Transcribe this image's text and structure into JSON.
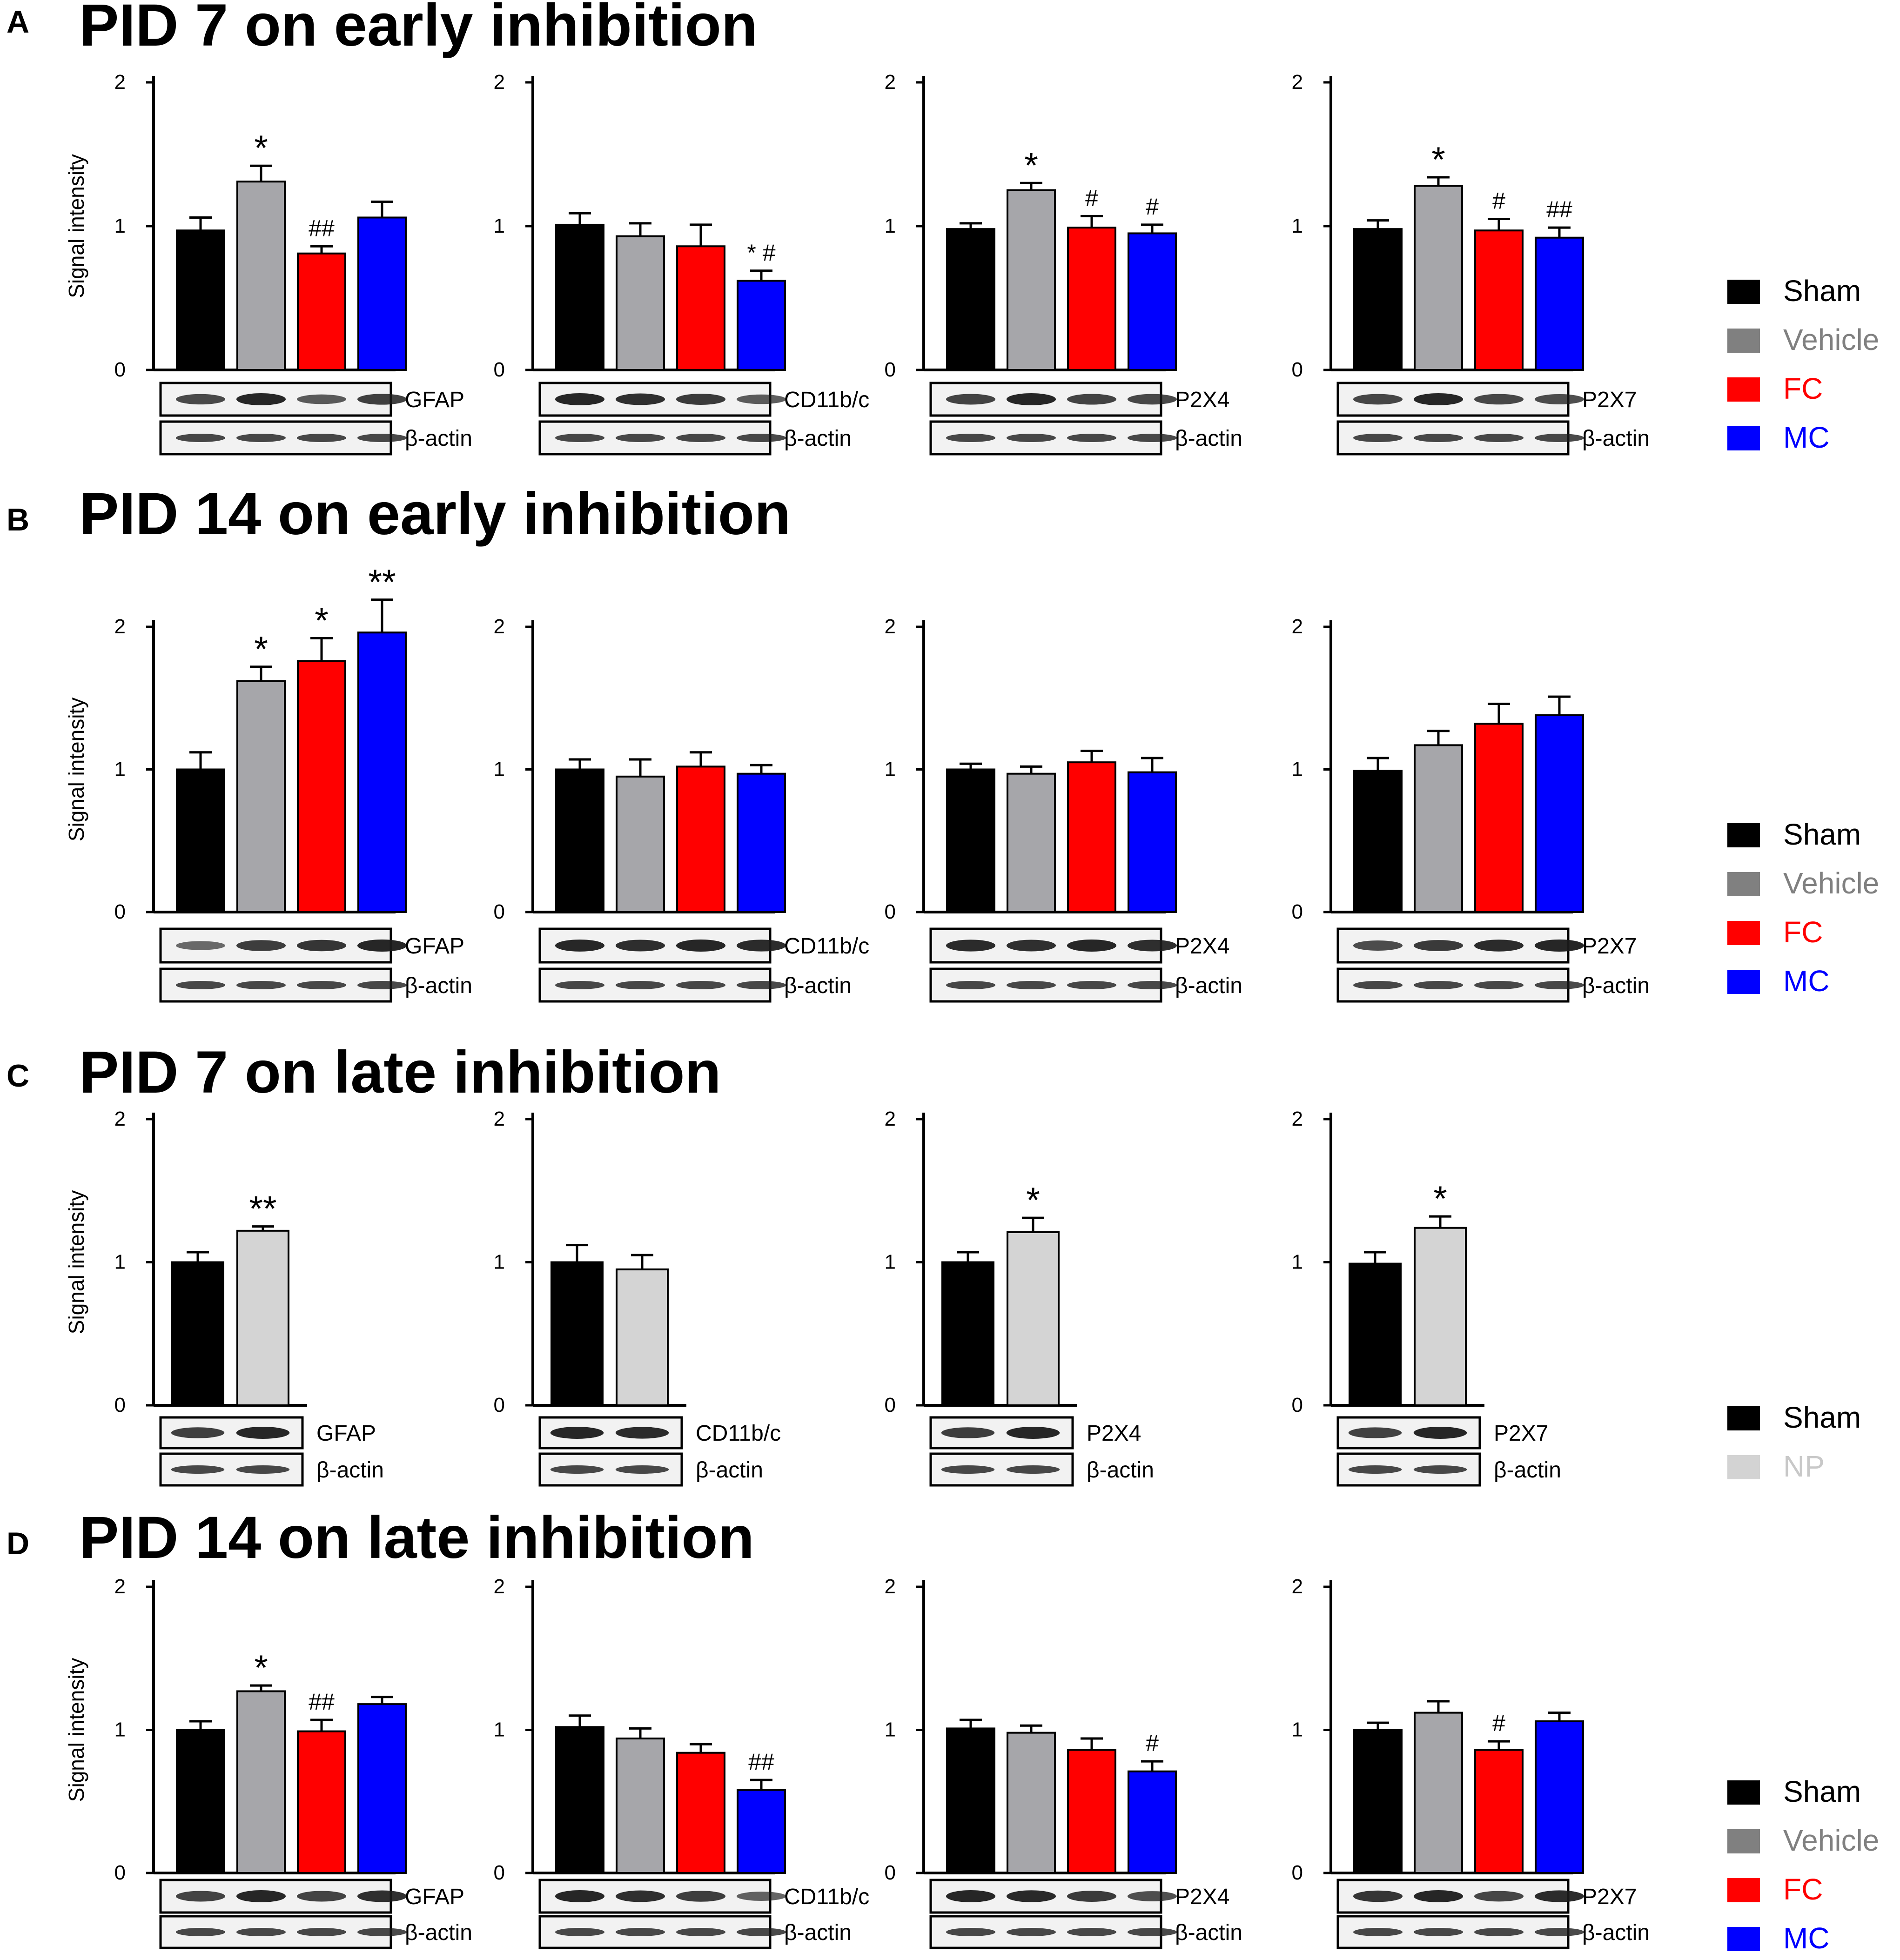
{
  "figure": {
    "ylabel": "Signal intensity",
    "y_ticks": [
      "0",
      "1",
      "2"
    ],
    "legend_early": [
      {
        "label": "Sham",
        "color": "#000000"
      },
      {
        "label": "Vehicle",
        "color": "#808080"
      },
      {
        "label": "FC",
        "color": "#ff0000"
      },
      {
        "label": "MC",
        "color": "#0000ff"
      }
    ],
    "legend_late": [
      {
        "label": "Sham",
        "color": "#000000"
      },
      {
        "label": "NP",
        "color": "#d3d3d3"
      }
    ],
    "bar_colors": {
      "Sham": "#000000",
      "Vehicle": "#a6a6aa",
      "FC": "#ff0000",
      "MC": "#0000ff",
      "NP": "#d4d4d4"
    },
    "legend_text_colors": {
      "Sham": "#000000",
      "Vehicle": "#808080",
      "FC": "#ff0000",
      "MC": "#0000ff",
      "NP": "#c8c8c8"
    }
  },
  "chart_data": [
    {
      "type": "bar",
      "panel": "A",
      "title": "PID 7 on early inhibition",
      "protein": "GFAP",
      "loading": "β-actin",
      "ylabel": "Signal intensity",
      "ylim": [
        0,
        2
      ],
      "categories": [
        "Sham",
        "Vehicle",
        "FC",
        "MC"
      ],
      "values": [
        0.97,
        1.31,
        0.81,
        1.06
      ],
      "errors": [
        0.09,
        0.11,
        0.05,
        0.11
      ],
      "annotations": [
        "",
        "*",
        "##",
        ""
      ]
    },
    {
      "type": "bar",
      "panel": "A",
      "title": "PID 7 on early inhibition",
      "protein": "CD11b/c",
      "loading": "β-actin",
      "ylabel": "",
      "ylim": [
        0,
        2
      ],
      "categories": [
        "Sham",
        "Vehicle",
        "FC",
        "MC"
      ],
      "values": [
        1.01,
        0.93,
        0.86,
        0.62
      ],
      "errors": [
        0.08,
        0.09,
        0.15,
        0.07
      ],
      "annotations": [
        "",
        "",
        "",
        "* #"
      ]
    },
    {
      "type": "bar",
      "panel": "A",
      "title": "PID 7 on early inhibition",
      "protein": "P2X4",
      "loading": "β-actin",
      "ylabel": "",
      "ylim": [
        0,
        2
      ],
      "categories": [
        "Sham",
        "Vehicle",
        "FC",
        "MC"
      ],
      "values": [
        0.98,
        1.25,
        0.99,
        0.95
      ],
      "errors": [
        0.04,
        0.05,
        0.08,
        0.06
      ],
      "annotations": [
        "",
        "*",
        "#",
        "#"
      ]
    },
    {
      "type": "bar",
      "panel": "A",
      "title": "PID 7 on early inhibition",
      "protein": "P2X7",
      "loading": "β-actin",
      "ylabel": "",
      "ylim": [
        0,
        2
      ],
      "categories": [
        "Sham",
        "Vehicle",
        "FC",
        "MC"
      ],
      "values": [
        0.98,
        1.28,
        0.97,
        0.92
      ],
      "errors": [
        0.06,
        0.06,
        0.08,
        0.07
      ],
      "annotations": [
        "",
        "*",
        "#",
        "##"
      ]
    },
    {
      "type": "bar",
      "panel": "B",
      "title": "PID 14 on early inhibition",
      "protein": "GFAP",
      "loading": "β-actin",
      "ylabel": "Signal intensity",
      "ylim": [
        0,
        2
      ],
      "categories": [
        "Sham",
        "Vehicle",
        "FC",
        "MC"
      ],
      "values": [
        1.0,
        1.62,
        1.76,
        1.96
      ],
      "errors": [
        0.12,
        0.1,
        0.16,
        0.23
      ],
      "annotations": [
        "",
        "*",
        "*",
        "**"
      ]
    },
    {
      "type": "bar",
      "panel": "B",
      "title": "PID 14 on early inhibition",
      "protein": "CD11b/c",
      "loading": "β-actin",
      "ylabel": "",
      "ylim": [
        0,
        2
      ],
      "categories": [
        "Sham",
        "Vehicle",
        "FC",
        "MC"
      ],
      "values": [
        1.0,
        0.95,
        1.02,
        0.97
      ],
      "errors": [
        0.07,
        0.12,
        0.1,
        0.06
      ],
      "annotations": [
        "",
        "",
        "",
        ""
      ]
    },
    {
      "type": "bar",
      "panel": "B",
      "title": "PID 14 on early inhibition",
      "protein": "P2X4",
      "loading": "β-actin",
      "ylabel": "",
      "ylim": [
        0,
        2
      ],
      "categories": [
        "Sham",
        "Vehicle",
        "FC",
        "MC"
      ],
      "values": [
        1.0,
        0.97,
        1.05,
        0.98
      ],
      "errors": [
        0.04,
        0.05,
        0.08,
        0.1
      ],
      "annotations": [
        "",
        "",
        "",
        ""
      ]
    },
    {
      "type": "bar",
      "panel": "B",
      "title": "PID 14 on early inhibition",
      "protein": "P2X7",
      "loading": "β-actin",
      "ylabel": "",
      "ylim": [
        0,
        2
      ],
      "categories": [
        "Sham",
        "Vehicle",
        "FC",
        "MC"
      ],
      "values": [
        0.99,
        1.17,
        1.32,
        1.38
      ],
      "errors": [
        0.09,
        0.1,
        0.14,
        0.13
      ],
      "annotations": [
        "",
        "",
        "",
        ""
      ]
    },
    {
      "type": "bar",
      "panel": "C",
      "title": "PID 7 on late inhibition",
      "protein": "GFAP",
      "loading": "β-actin",
      "ylabel": "Signal intensity",
      "ylim": [
        0,
        2
      ],
      "categories": [
        "Sham",
        "NP"
      ],
      "values": [
        1.0,
        1.22
      ],
      "errors": [
        0.07,
        0.03
      ],
      "annotations": [
        "",
        "**"
      ]
    },
    {
      "type": "bar",
      "panel": "C",
      "title": "PID 7 on late inhibition",
      "protein": "CD11b/c",
      "loading": "β-actin",
      "ylabel": "",
      "ylim": [
        0,
        2
      ],
      "categories": [
        "Sham",
        "NP"
      ],
      "values": [
        1.0,
        0.95
      ],
      "errors": [
        0.12,
        0.1
      ],
      "annotations": [
        "",
        ""
      ]
    },
    {
      "type": "bar",
      "panel": "C",
      "title": "PID 7 on late inhibition",
      "protein": "P2X4",
      "loading": "β-actin",
      "ylabel": "",
      "ylim": [
        0,
        2
      ],
      "categories": [
        "Sham",
        "NP"
      ],
      "values": [
        1.0,
        1.21
      ],
      "errors": [
        0.07,
        0.1
      ],
      "annotations": [
        "",
        "*"
      ]
    },
    {
      "type": "bar",
      "panel": "C",
      "title": "PID 7 on late inhibition",
      "protein": "P2X7",
      "loading": "β-actin",
      "ylabel": "",
      "ylim": [
        0,
        2
      ],
      "categories": [
        "Sham",
        "NP"
      ],
      "values": [
        0.99,
        1.24
      ],
      "errors": [
        0.08,
        0.08
      ],
      "annotations": [
        "",
        "*"
      ]
    },
    {
      "type": "bar",
      "panel": "D",
      "title": "PID 14 on late inhibition",
      "protein": "GFAP",
      "loading": "β-actin",
      "ylabel": "Signal intensity",
      "ylim": [
        0,
        2
      ],
      "categories": [
        "Sham",
        "Vehicle",
        "FC",
        "MC"
      ],
      "values": [
        1.0,
        1.27,
        0.99,
        1.18
      ],
      "errors": [
        0.06,
        0.04,
        0.08,
        0.05
      ],
      "annotations": [
        "",
        "*",
        "##",
        ""
      ]
    },
    {
      "type": "bar",
      "panel": "D",
      "title": "PID 14 on late inhibition",
      "protein": "CD11b/c",
      "loading": "β-actin",
      "ylabel": "",
      "ylim": [
        0,
        2
      ],
      "categories": [
        "Sham",
        "Vehicle",
        "FC",
        "MC"
      ],
      "values": [
        1.02,
        0.94,
        0.84,
        0.58
      ],
      "errors": [
        0.08,
        0.07,
        0.06,
        0.07
      ],
      "annotations": [
        "",
        "",
        "",
        "##"
      ]
    },
    {
      "type": "bar",
      "panel": "D",
      "title": "PID 14 on late inhibition",
      "protein": "P2X4",
      "loading": "β-actin",
      "ylabel": "",
      "ylim": [
        0,
        2
      ],
      "categories": [
        "Sham",
        "Vehicle",
        "FC",
        "MC"
      ],
      "values": [
        1.01,
        0.98,
        0.86,
        0.71
      ],
      "errors": [
        0.06,
        0.05,
        0.08,
        0.07
      ],
      "annotations": [
        "",
        "",
        "",
        "#"
      ]
    },
    {
      "type": "bar",
      "panel": "D",
      "title": "PID 14 on late inhibition",
      "protein": "P2X7",
      "loading": "β-actin",
      "ylabel": "",
      "ylim": [
        0,
        2
      ],
      "categories": [
        "Sham",
        "Vehicle",
        "FC",
        "MC"
      ],
      "values": [
        1.0,
        1.12,
        0.86,
        1.06
      ],
      "errors": [
        0.05,
        0.08,
        0.06,
        0.06
      ],
      "annotations": [
        "",
        "",
        "#",
        ""
      ]
    }
  ]
}
